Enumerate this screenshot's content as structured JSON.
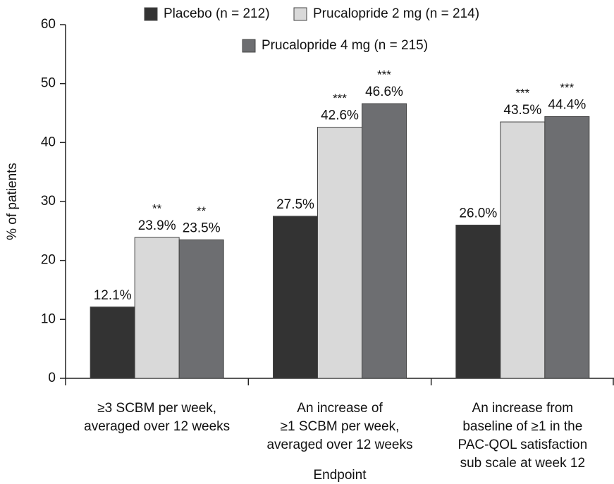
{
  "chart_data": {
    "type": "bar",
    "y_label": "% of patients",
    "x_label": "Endpoint",
    "categories": [
      [
        "≥3 SCBM per week,",
        "averaged over 12 weeks"
      ],
      [
        "An increase of",
        "≥1 SCBM per week,",
        "averaged over 12 weeks"
      ],
      [
        "An increase from",
        "baseline of ≥1 in the",
        "PAC-QOL satisfaction",
        "sub scale at week 12"
      ]
    ],
    "series": [
      {
        "name": "Placebo (n = 212)",
        "color": "#333333",
        "values": [
          12.1,
          27.5,
          26.0
        ],
        "value_labels": [
          "12.1%",
          "27.5%",
          "26.0%"
        ]
      },
      {
        "name": "Prucalopride 2 mg (n = 214)",
        "color": "#d9d9d9",
        "values": [
          23.9,
          42.6,
          43.5
        ],
        "value_labels": [
          "23.9%",
          "42.6%",
          "43.5%"
        ],
        "significance": [
          "**",
          "***",
          "***"
        ]
      },
      {
        "name": "Prucalopride 4 mg (n = 215)",
        "color": "#6d6e71",
        "values": [
          23.5,
          46.6,
          44.4
        ],
        "value_labels": [
          "23.5%",
          "46.6%",
          "44.4%"
        ],
        "significance": [
          "**",
          "***",
          "***"
        ]
      }
    ],
    "ylim": [
      0,
      60
    ],
    "yticks": [
      0,
      10,
      20,
      30,
      40,
      50,
      60
    ]
  }
}
